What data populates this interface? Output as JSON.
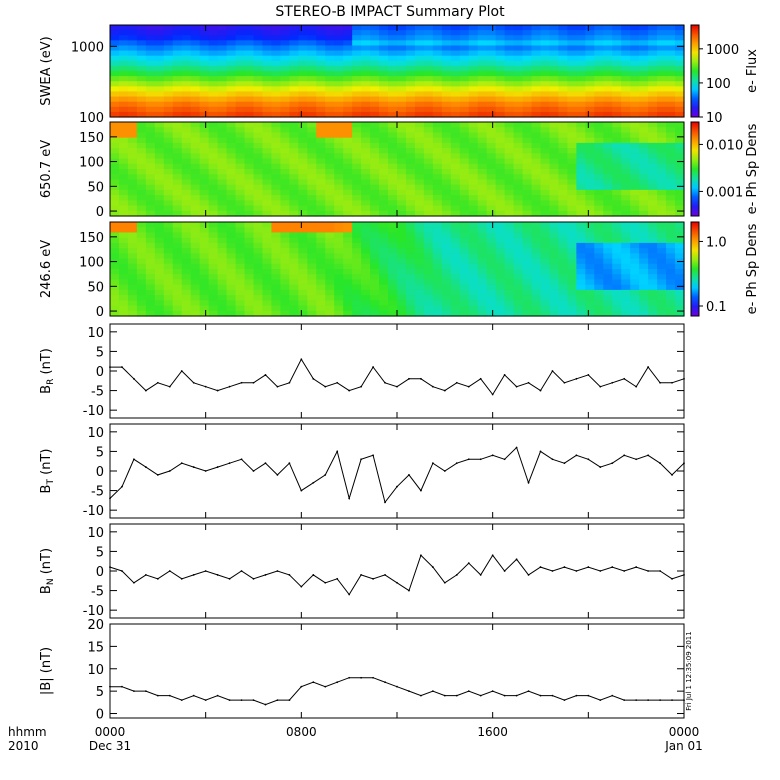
{
  "chart_data": {
    "title": "STEREO-B IMPACT Summary Plot",
    "x_axis": {
      "tick_labels": [
        "0000",
        "0800",
        "1600",
        "0000"
      ],
      "date_labels": [
        "Dec 31",
        "Jan 01"
      ],
      "left_labels": [
        "hhmm",
        "2010"
      ],
      "range_hours": [
        0,
        24
      ]
    },
    "side_stamp": "Fri Jul 1 12:35:09 2011",
    "panels": [
      {
        "type": "heatmap",
        "ylabel": "SWEA (eV)",
        "yscale": "log",
        "ylim": [
          100,
          2000
        ],
        "yticks": [
          {
            "v": 100,
            "label": "100"
          },
          {
            "v": 1000,
            "label": "1000"
          }
        ],
        "colorbar": {
          "title": "e- Flux",
          "scale": "log",
          "range": [
            10,
            5000
          ],
          "ticks": [
            {
              "v": 10,
              "label": "10"
            },
            {
              "v": 100,
              "label": "100"
            },
            {
              "v": 1000,
              "label": "1000"
            }
          ]
        }
      },
      {
        "type": "heatmap",
        "ylabel": "650.7 eV",
        "ylim": [
          -10,
          180
        ],
        "yticks": [
          {
            "v": 0,
            "label": "0"
          },
          {
            "v": 50,
            "label": "50"
          },
          {
            "v": 100,
            "label": "100"
          },
          {
            "v": 150,
            "label": "150"
          }
        ],
        "colorbar": {
          "title": "e- Ph Sp Dens",
          "scale": "log",
          "range": [
            0.0003,
            0.03
          ],
          "ticks": [
            {
              "v": 0.001,
              "label": "0.001"
            },
            {
              "v": 0.01,
              "label": "0.010"
            }
          ]
        }
      },
      {
        "type": "heatmap",
        "ylabel": "246.6 eV",
        "ylim": [
          -10,
          180
        ],
        "yticks": [
          {
            "v": 0,
            "label": "0"
          },
          {
            "v": 50,
            "label": "50"
          },
          {
            "v": 100,
            "label": "100"
          },
          {
            "v": 150,
            "label": "150"
          }
        ],
        "colorbar": {
          "title": "e- Ph Sp Dens",
          "scale": "log",
          "range": [
            0.07,
            2
          ],
          "ticks": [
            {
              "v": 0.1,
              "label": "0.1"
            },
            {
              "v": 1,
              "label": "1.0"
            }
          ]
        }
      },
      {
        "type": "line",
        "ylabel": "BR (nT)",
        "ylabel_base": "B",
        "ylabel_sub": "R",
        "ylabel_unit": " (nT)",
        "ylim": [
          -12,
          12
        ],
        "yticks": [
          {
            "v": -10,
            "label": "-10"
          },
          {
            "v": -5,
            "label": "-5"
          },
          {
            "v": 0,
            "label": "0"
          },
          {
            "v": 5,
            "label": "5"
          },
          {
            "v": 10,
            "label": "10"
          }
        ],
        "x": [
          0,
          0.5,
          1,
          1.5,
          2,
          2.5,
          3,
          3.5,
          4,
          4.5,
          5,
          5.5,
          6,
          6.5,
          7,
          7.5,
          8,
          8.5,
          9,
          9.5,
          10,
          10.5,
          11,
          11.5,
          12,
          12.5,
          13,
          13.5,
          14,
          14.5,
          15,
          15.5,
          16,
          16.5,
          17,
          17.5,
          18,
          18.5,
          19,
          19.5,
          20,
          20.5,
          21,
          21.5,
          22,
          22.5,
          23,
          23.5,
          24
        ],
        "y": [
          1,
          1,
          -2,
          -5,
          -3,
          -4,
          0,
          -3,
          -4,
          -5,
          -4,
          -3,
          -3,
          -1,
          -4,
          -3,
          3,
          -2,
          -4,
          -3,
          -5,
          -4,
          1,
          -3,
          -4,
          -2,
          -2,
          -4,
          -5,
          -3,
          -4,
          -2,
          -6,
          -1,
          -4,
          -3,
          -5,
          0,
          -3,
          -2,
          -1,
          -4,
          -3,
          -2,
          -4,
          1,
          -3,
          -3,
          -2
        ]
      },
      {
        "type": "line",
        "ylabel": "BT (nT)",
        "ylabel_base": "B",
        "ylabel_sub": "T",
        "ylabel_unit": " (nT)",
        "ylim": [
          -12,
          12
        ],
        "yticks": [
          {
            "v": -10,
            "label": "-10"
          },
          {
            "v": -5,
            "label": "-5"
          },
          {
            "v": 0,
            "label": "0"
          },
          {
            "v": 5,
            "label": "5"
          },
          {
            "v": 10,
            "label": "10"
          }
        ],
        "x": [
          0,
          0.5,
          1,
          1.5,
          2,
          2.5,
          3,
          3.5,
          4,
          4.5,
          5,
          5.5,
          6,
          6.5,
          7,
          7.5,
          8,
          8.5,
          9,
          9.5,
          10,
          10.5,
          11,
          11.5,
          12,
          12.5,
          13,
          13.5,
          14,
          14.5,
          15,
          15.5,
          16,
          16.5,
          17,
          17.5,
          18,
          18.5,
          19,
          19.5,
          20,
          20.5,
          21,
          21.5,
          22,
          22.5,
          23,
          23.5,
          24
        ],
        "y": [
          -7,
          -4,
          3,
          1,
          -1,
          0,
          2,
          1,
          0,
          1,
          2,
          3,
          0,
          2,
          -1,
          2,
          -5,
          -3,
          -1,
          5,
          -7,
          3,
          4,
          -8,
          -4,
          -1,
          -5,
          2,
          0,
          2,
          3,
          3,
          4,
          3,
          6,
          -3,
          5,
          3,
          2,
          4,
          3,
          1,
          2,
          4,
          3,
          4,
          2,
          -1,
          2
        ]
      },
      {
        "type": "line",
        "ylabel": "BN (nT)",
        "ylabel_base": "B",
        "ylabel_sub": "N",
        "ylabel_unit": " (nT)",
        "ylim": [
          -12,
          12
        ],
        "yticks": [
          {
            "v": -10,
            "label": "-10"
          },
          {
            "v": -5,
            "label": "-5"
          },
          {
            "v": 0,
            "label": "0"
          },
          {
            "v": 5,
            "label": "5"
          },
          {
            "v": 10,
            "label": "10"
          }
        ],
        "x": [
          0,
          0.5,
          1,
          1.5,
          2,
          2.5,
          3,
          3.5,
          4,
          4.5,
          5,
          5.5,
          6,
          6.5,
          7,
          7.5,
          8,
          8.5,
          9,
          9.5,
          10,
          10.5,
          11,
          11.5,
          12,
          12.5,
          13,
          13.5,
          14,
          14.5,
          15,
          15.5,
          16,
          16.5,
          17,
          17.5,
          18,
          18.5,
          19,
          19.5,
          20,
          20.5,
          21,
          21.5,
          22,
          22.5,
          23,
          23.5,
          24
        ],
        "y": [
          1,
          0,
          -3,
          -1,
          -2,
          0,
          -2,
          -1,
          0,
          -1,
          -2,
          0,
          -2,
          -1,
          0,
          -1,
          -4,
          -1,
          -3,
          -2,
          -6,
          -1,
          -2,
          -1,
          -3,
          -5,
          4,
          1,
          -3,
          -1,
          2,
          -1,
          4,
          0,
          3,
          -1,
          1,
          0,
          1,
          0,
          1,
          0,
          1,
          0,
          1,
          0,
          0,
          -2,
          -1
        ]
      },
      {
        "type": "line",
        "ylabel": "|B| (nT)",
        "ylim": [
          -1,
          20
        ],
        "yticks": [
          {
            "v": 0,
            "label": "0"
          },
          {
            "v": 5,
            "label": "5"
          },
          {
            "v": 10,
            "label": "10"
          },
          {
            "v": 15,
            "label": "15"
          },
          {
            "v": 20,
            "label": "20"
          }
        ],
        "x": [
          0,
          0.5,
          1,
          1.5,
          2,
          2.5,
          3,
          3.5,
          4,
          4.5,
          5,
          5.5,
          6,
          6.5,
          7,
          7.5,
          8,
          8.5,
          9,
          9.5,
          10,
          10.5,
          11,
          11.5,
          12,
          12.5,
          13,
          13.5,
          14,
          14.5,
          15,
          15.5,
          16,
          16.5,
          17,
          17.5,
          18,
          18.5,
          19,
          19.5,
          20,
          20.5,
          21,
          21.5,
          22,
          22.5,
          23,
          23.5,
          24
        ],
        "y": [
          6,
          6,
          5,
          5,
          4,
          4,
          3,
          4,
          3,
          4,
          3,
          3,
          3,
          2,
          3,
          3,
          6,
          7,
          6,
          7,
          8,
          8,
          8,
          7,
          6,
          5,
          4,
          5,
          4,
          4,
          5,
          4,
          5,
          4,
          4,
          5,
          4,
          4,
          3,
          4,
          4,
          3,
          4,
          3,
          3,
          3,
          3,
          3,
          3
        ]
      }
    ]
  }
}
